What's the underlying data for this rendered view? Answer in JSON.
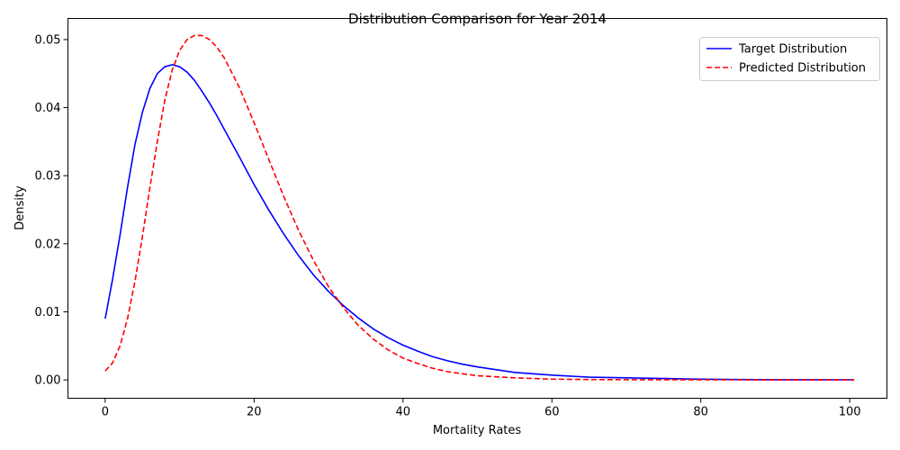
{
  "chart_data": {
    "type": "line",
    "title": "Distribution Comparison for Year 2014",
    "xlabel": "Mortality Rates",
    "ylabel": "Density",
    "xlim": [
      -5,
      105
    ],
    "ylim": [
      -0.0027,
      0.0531
    ],
    "xticks": [
      0,
      20,
      40,
      60,
      80,
      100
    ],
    "yticks": [
      0.0,
      0.01,
      0.02,
      0.03,
      0.04,
      0.05
    ],
    "ytick_labels": [
      "0.00",
      "0.01",
      "0.02",
      "0.03",
      "0.04",
      "0.05"
    ],
    "grid": false,
    "legend_position": "top-right",
    "series": [
      {
        "name": "Target Distribution",
        "color": "#0000ff",
        "dash": "solid",
        "x": [
          0,
          1,
          2,
          3,
          4,
          5,
          6,
          7,
          8,
          9,
          10,
          11,
          12,
          13,
          14,
          15,
          16,
          18,
          20,
          22,
          24,
          26,
          28,
          30,
          32,
          34,
          36,
          38,
          40,
          42,
          44,
          46,
          48,
          50,
          55,
          60,
          65,
          70,
          75,
          80,
          85,
          90,
          95,
          100.6
        ],
        "values": [
          0.009,
          0.0148,
          0.0213,
          0.0283,
          0.0346,
          0.0393,
          0.0428,
          0.045,
          0.046,
          0.0463,
          0.046,
          0.0452,
          0.044,
          0.0424,
          0.0407,
          0.0388,
          0.0368,
          0.0328,
          0.0287,
          0.0249,
          0.0214,
          0.0182,
          0.0154,
          0.013,
          0.0109,
          0.0091,
          0.0075,
          0.0062,
          0.0051,
          0.0042,
          0.0034,
          0.0028,
          0.0023,
          0.0019,
          0.0011,
          0.0007,
          0.0004,
          0.0003,
          0.0002,
          0.0001,
          5e-05,
          3e-05,
          2e-05,
          1e-05
        ]
      },
      {
        "name": "Predicted Distribution",
        "color": "#ff0000",
        "dash": "dashed",
        "x": [
          0,
          1,
          2,
          3,
          4,
          5,
          6,
          7,
          8,
          9,
          10,
          11,
          12,
          13,
          14,
          15,
          16,
          18,
          20,
          22,
          24,
          26,
          28,
          30,
          32,
          34,
          36,
          38,
          40,
          42,
          44,
          46,
          48,
          50,
          55,
          60,
          65,
          70,
          75,
          80,
          85,
          90,
          95,
          100.6
        ],
        "values": [
          0.0013,
          0.0025,
          0.005,
          0.009,
          0.0145,
          0.021,
          0.0282,
          0.035,
          0.041,
          0.0455,
          0.0484,
          0.05,
          0.0506,
          0.0506,
          0.05,
          0.0489,
          0.0473,
          0.043,
          0.0378,
          0.0323,
          0.0269,
          0.0219,
          0.0175,
          0.0137,
          0.0106,
          0.008,
          0.006,
          0.0044,
          0.0032,
          0.0024,
          0.0017,
          0.0012,
          0.0009,
          0.0006,
          0.0003,
          0.0001,
          5e-05,
          3e-05,
          2e-05,
          1e-05,
          5e-06,
          3e-06,
          2e-06,
          1e-06
        ]
      }
    ]
  }
}
